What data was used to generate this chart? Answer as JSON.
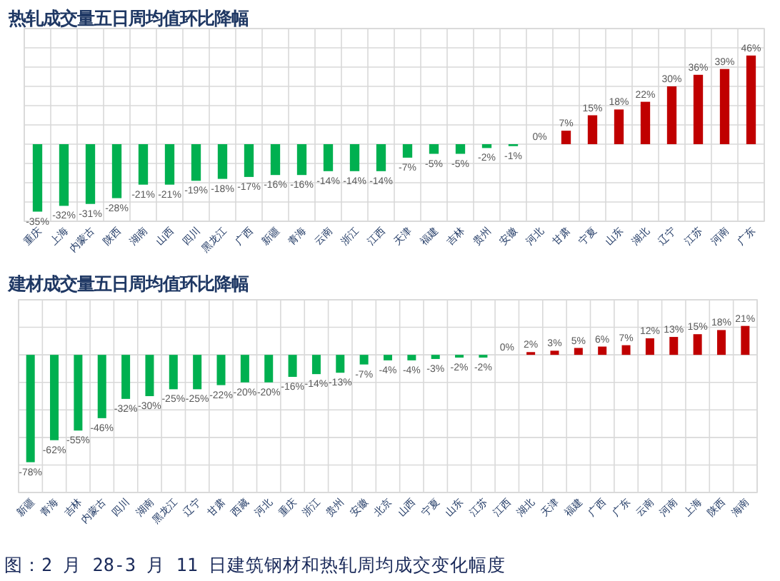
{
  "chart_data": [
    {
      "type": "bar",
      "title": "热轧成交量五日周均值环比降幅",
      "categories": [
        "重庆",
        "上海",
        "内蒙古",
        "陕西",
        "湖南",
        "山西",
        "四川",
        "黑龙江",
        "广西",
        "新疆",
        "青海",
        "云南",
        "浙江",
        "江西",
        "天津",
        "福建",
        "吉林",
        "贵州",
        "安徽",
        "河北",
        "甘肃",
        "宁夏",
        "山东",
        "湖北",
        "辽宁",
        "江苏",
        "河南",
        "广东"
      ],
      "values": [
        -35,
        -32,
        -31,
        -28,
        -21,
        -21,
        -19,
        -18,
        -17,
        -16,
        -16,
        -14,
        -14,
        -14,
        -7,
        -5,
        -5,
        -2,
        -1,
        0,
        7,
        15,
        18,
        22,
        30,
        36,
        39,
        46
      ],
      "colors": [
        "#00b050",
        "#00b050",
        "#00b050",
        "#00b050",
        "#00b050",
        "#00b050",
        "#00b050",
        "#00b050",
        "#00b050",
        "#00b050",
        "#00b050",
        "#00b050",
        "#00b050",
        "#00b050",
        "#00b050",
        "#00b050",
        "#00b050",
        "#00b050",
        "#00b050",
        "#00b050",
        "#c00000",
        "#c00000",
        "#c00000",
        "#c00000",
        "#c00000",
        "#c00000",
        "#c00000",
        "#c00000"
      ],
      "value_labels": [
        "-35%",
        "-32%",
        "-31%",
        "-28%",
        "-21%",
        "-21%",
        "-19%",
        "-18%",
        "-17%",
        "-16%",
        "-16%",
        "-14%",
        "-14%",
        "-14%",
        "-7%",
        "-5%",
        "-5%",
        "-2%",
        "-1%",
        "0%",
        "7%",
        "15%",
        "18%",
        "22%",
        "30%",
        "36%",
        "39%",
        "46%"
      ],
      "ylim": [
        -40,
        60
      ],
      "yticks": [
        {
          "value": -40,
          "label": null
        },
        {
          "value": -30,
          "label": null
        },
        {
          "value": -20,
          "label": null
        },
        {
          "value": -10,
          "label": null
        },
        {
          "value": 0,
          "label": null
        },
        {
          "value": 10,
          "label": null
        },
        {
          "value": 20,
          "label": null
        },
        {
          "value": 30,
          "label": null
        },
        {
          "value": 40,
          "label": null
        },
        {
          "value": 50,
          "label": null
        },
        {
          "value": 60,
          "label": null
        }
      ],
      "grid": true,
      "tick_labels": "x"
    },
    {
      "type": "bar",
      "title": "建材成交量五日周均值环比降幅",
      "categories": [
        "新疆",
        "青海",
        "吉林",
        "内蒙古",
        "四川",
        "湖南",
        "黑龙江",
        "辽宁",
        "甘肃",
        "西藏",
        "河北",
        "重庆",
        "浙江",
        "贵州",
        "安徽",
        "北京",
        "山西",
        "宁夏",
        "山东",
        "江苏",
        "江西",
        "湖北",
        "天津",
        "福建",
        "广西",
        "广东",
        "云南",
        "河南",
        "上海",
        "陕西",
        "海南"
      ],
      "values": [
        -78,
        -62,
        -55,
        -46,
        -32,
        -30,
        -25,
        -25,
        -22,
        -20,
        -20,
        -16,
        -14,
        -13,
        -7,
        -4,
        -4,
        -3,
        -2,
        -2,
        0,
        2,
        3,
        5,
        6,
        7,
        12,
        13,
        15,
        18,
        21
      ],
      "colors": [
        "#00b050",
        "#00b050",
        "#00b050",
        "#00b050",
        "#00b050",
        "#00b050",
        "#00b050",
        "#00b050",
        "#00b050",
        "#00b050",
        "#00b050",
        "#00b050",
        "#00b050",
        "#00b050",
        "#00b050",
        "#00b050",
        "#00b050",
        "#00b050",
        "#00b050",
        "#00b050",
        "#c00000",
        "#c00000",
        "#c00000",
        "#c00000",
        "#c00000",
        "#c00000",
        "#c00000",
        "#c00000",
        "#c00000",
        "#c00000",
        "#c00000"
      ],
      "value_labels": [
        "-78%",
        "-62%",
        "-55%",
        "-46%",
        "-32%",
        "-30%",
        "-25%",
        "-25%",
        "-22%",
        "-20%",
        "-20%",
        "-16%",
        "-14%",
        "-13%",
        "-7%",
        "-4%",
        "-4%",
        "-3%",
        "-2%",
        "-2%",
        "0%",
        "2%",
        "3%",
        "5%",
        "6%",
        "7%",
        "12%",
        "13%",
        "15%",
        "18%",
        "21%"
      ],
      "ylim": [
        -100,
        40
      ],
      "yticks": [
        {
          "value": -100,
          "label": null
        },
        {
          "value": -80,
          "label": null
        },
        {
          "value": -60,
          "label": null
        },
        {
          "value": -40,
          "label": null
        },
        {
          "value": -20,
          "label": null
        },
        {
          "value": 0,
          "label": null
        },
        {
          "value": 20,
          "label": null
        },
        {
          "value": 40,
          "label": null
        }
      ],
      "grid": true,
      "tick_labels": "x",
      "annotations": [
        "图：2 月 28-3 月 11 日建筑钢材和热轧周均成交变化幅度"
      ]
    }
  ]
}
